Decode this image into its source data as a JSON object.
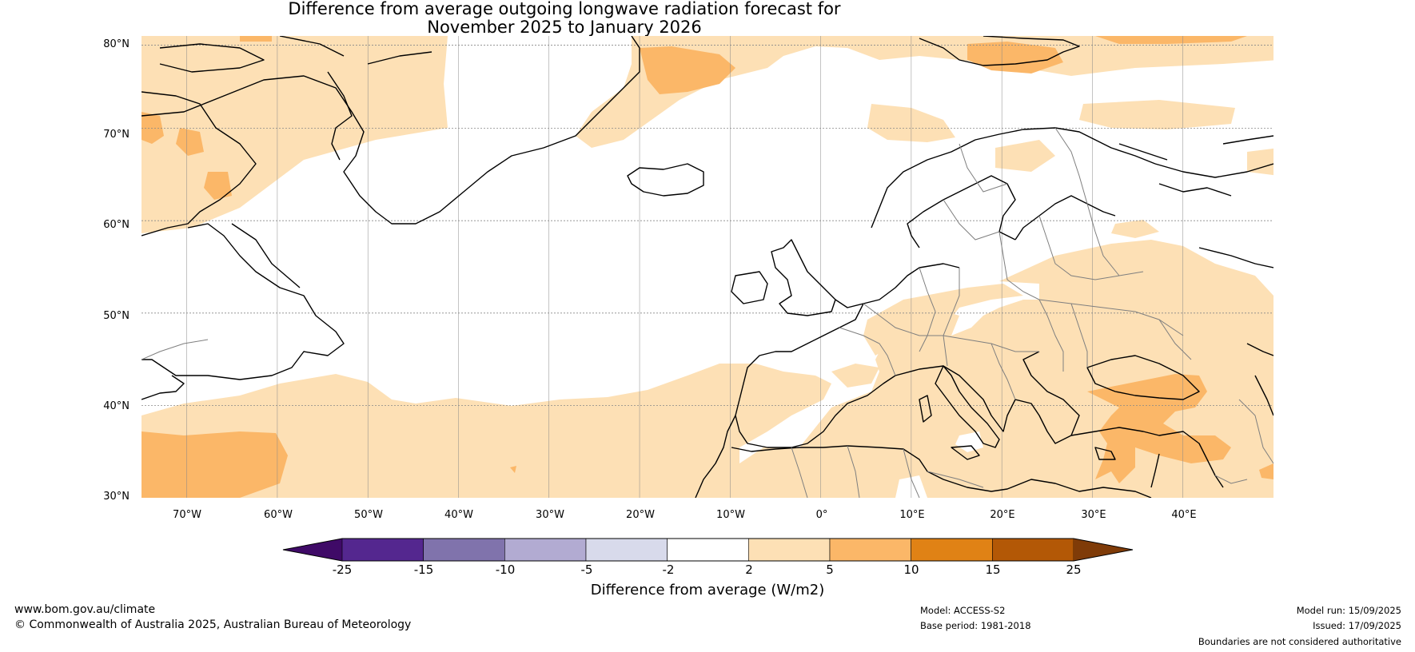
{
  "title": {
    "line1": "Difference from average outgoing longwave radiation forecast for",
    "line2": "November 2025 to January 2026"
  },
  "map": {
    "lat_labels": [
      "80°N",
      "70°N",
      "60°N",
      "50°N",
      "40°N",
      "30°N"
    ],
    "lon_labels": [
      "70°W",
      "60°W",
      "50°W",
      "40°W",
      "30°W",
      "20°W",
      "10°W",
      "0°",
      "10°E",
      "20°E",
      "30°E",
      "40°E"
    ],
    "lat_range": [
      30,
      80
    ],
    "lon_range": [
      -75,
      50
    ],
    "colors": {
      "band_2_5": "#fde0b5",
      "band_5_10": "#fbb768",
      "coast": "#000000",
      "border": "#7f7f7f",
      "grid": "#888888"
    }
  },
  "colorbar": {
    "title": "Difference from average (W/m2)",
    "ticks": [
      "-25",
      "-15",
      "-10",
      "-5",
      "-2",
      "2",
      "5",
      "10",
      "15",
      "25"
    ],
    "colors": [
      "#3f0a67",
      "#54278f",
      "#8073ac",
      "#b2abd2",
      "#d8daeb",
      "#ffffff",
      "#fde0b5",
      "#fbb768",
      "#e08215",
      "#b35806",
      "#7f3b08"
    ]
  },
  "footer": {
    "website": "www.bom.gov.au/climate",
    "copyright": "© Commonwealth of Australia 2025, Australian Bureau of Meteorology",
    "model": "Model: ACCESS-S2",
    "base_period": "Base period: 1981-2018",
    "model_run": "Model run: 15/09/2025",
    "issued": "Issued: 17/09/2025",
    "disclaimer": "Boundaries are not considered authoritative"
  }
}
